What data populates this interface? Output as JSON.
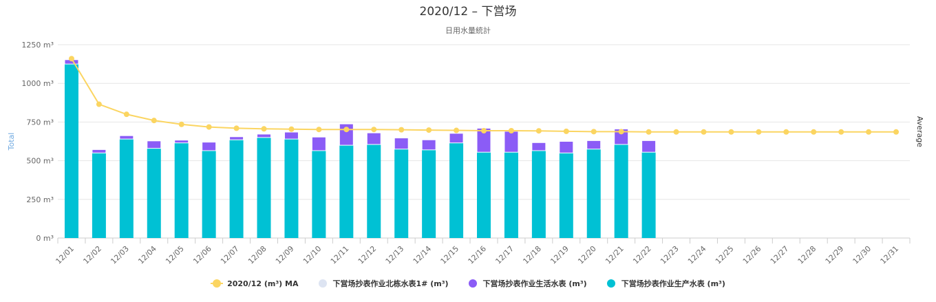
{
  "chart_data": {
    "type": "bar",
    "stacked": true,
    "title": "2020/12 – 下営场",
    "subtitle": "日用水量統計",
    "ylabel": "Total",
    "ylabel_right": "Average",
    "ylim": [
      0,
      1250
    ],
    "y_ticks": [
      0,
      250,
      500,
      750,
      1000,
      1250
    ],
    "y_tick_labels": [
      "0 m³",
      "250 m³",
      "500 m³",
      "750 m³",
      "1000 m³",
      "1250 m³"
    ],
    "grid": true,
    "legend_position": "bottom",
    "categories": [
      "12/01",
      "12/02",
      "12/03",
      "12/04",
      "12/05",
      "12/06",
      "12/07",
      "12/08",
      "12/09",
      "12/10",
      "12/11",
      "12/12",
      "12/13",
      "12/14",
      "12/15",
      "12/16",
      "12/17",
      "12/18",
      "12/19",
      "12/20",
      "12/21",
      "12/22",
      "12/23",
      "12/24",
      "12/25",
      "12/26",
      "12/27",
      "12/28",
      "12/29",
      "12/30",
      "12/31"
    ],
    "series": [
      {
        "name": "下営场抄表作业生产水表 (m³)",
        "type": "bar",
        "color": "#00c1d4",
        "values": [
          1125,
          550,
          640,
          580,
          615,
          565,
          635,
          650,
          640,
          565,
          600,
          605,
          575,
          570,
          615,
          555,
          555,
          565,
          550,
          575,
          605,
          555,
          null,
          null,
          null,
          null,
          null,
          null,
          null,
          null,
          null
        ]
      },
      {
        "name": "下営场抄表作业生活水表 (m³)",
        "type": "bar",
        "color": "#8b5cf6",
        "values": [
          28,
          22,
          22,
          48,
          18,
          55,
          20,
          22,
          45,
          88,
          138,
          75,
          72,
          65,
          62,
          155,
          135,
          52,
          75,
          55,
          100,
          75,
          null,
          null,
          null,
          null,
          null,
          null,
          null,
          null,
          null
        ]
      },
      {
        "name": "下営场抄表作业北栋水表1# (m³)",
        "type": "bar",
        "color": "#dde4f2",
        "values": [
          0,
          0,
          0,
          0,
          0,
          0,
          0,
          0,
          0,
          0,
          0,
          0,
          0,
          0,
          0,
          0,
          0,
          0,
          0,
          0,
          0,
          0,
          null,
          null,
          null,
          null,
          null,
          null,
          null,
          null,
          null
        ]
      },
      {
        "name": "2020/12 (m³) MA",
        "type": "line",
        "color": "#fbd561",
        "values": [
          1160,
          865,
          800,
          760,
          735,
          718,
          710,
          706,
          704,
          702,
          702,
          702,
          700,
          698,
          696,
          694,
          694,
          693,
          690,
          688,
          688,
          686,
          686,
          686,
          686,
          686,
          686,
          686,
          686,
          686,
          686
        ]
      }
    ]
  },
  "legend": [
    {
      "label": "2020/12 (m³) MA",
      "color": "#fbd561",
      "icon": "line-dot-icon"
    },
    {
      "label": "下営场抄表作业北栋水表1# (m³)",
      "color": "#dde4f2",
      "icon": "circle-icon"
    },
    {
      "label": "下営场抄表作业生活水表 (m³)",
      "color": "#8b5cf6",
      "icon": "circle-icon"
    },
    {
      "label": "下営场抄表作业生产水表 (m³)",
      "color": "#00c1d4",
      "icon": "circle-icon"
    }
  ]
}
